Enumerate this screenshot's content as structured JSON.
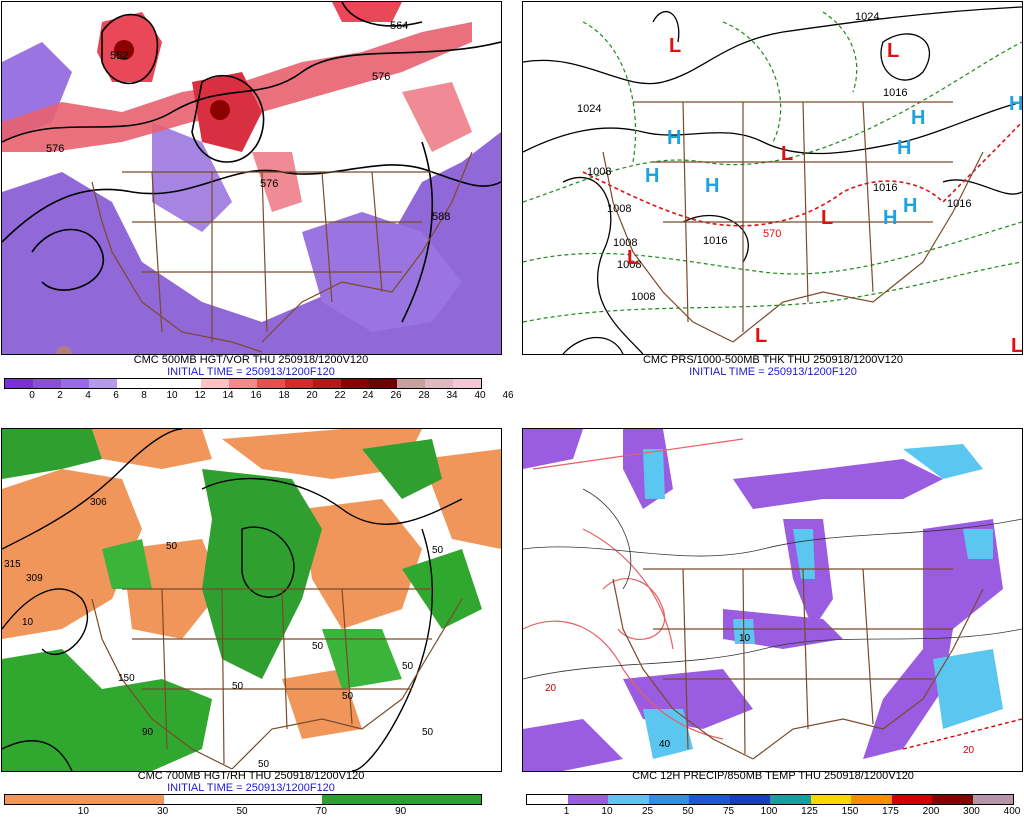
{
  "panels": [
    {
      "id": "p1",
      "caption_line1": "CMC 500MB HGT/VOR THU 250918/1200V120",
      "caption_line2": "INITIAL TIME = 250913/1200F120",
      "scale_colors": [
        "#7b2fd6",
        "#8a4de0",
        "#9a6be6",
        "#b49ae8",
        "#ffffff",
        "#ffffff",
        "#ffffff",
        "#ffc2c2",
        "#f28a8a",
        "#e85050",
        "#d42a2a",
        "#b81818",
        "#8b0000",
        "#6e0000",
        "#c9a0a0",
        "#e0b8c0",
        "#f5c6d6"
      ],
      "scale_labels": [
        "0",
        "2",
        "4",
        "6",
        "8",
        "10",
        "12",
        "14",
        "16",
        "18",
        "20",
        "22",
        "24",
        "26",
        "28",
        "34",
        "40",
        "46"
      ],
      "contour_labels": [
        "552",
        "564",
        "576",
        "576",
        "576",
        "588"
      ]
    },
    {
      "id": "p2",
      "caption_line1": "CMC PRS/1000-500MB THK THU 250918/1200V120",
      "caption_line2": "INITIAL TIME = 250913/1200F120",
      "pressure_labels": [
        "1024",
        "1024",
        "1016",
        "1008",
        "1008",
        "1016",
        "1016",
        "1016",
        "1008",
        "1008",
        "1008",
        "1016"
      ],
      "thickness_label": "570",
      "low_marker": "L",
      "high_marker": "H",
      "low_color": "#e01010",
      "high_color": "#1fa2e0"
    },
    {
      "id": "p3",
      "caption_line1": "CMC 700MB HGT/RH THU 250918/1200V120",
      "caption_line2": "INITIAL TIME = 250913/1200F120",
      "scale_colors": [
        "#f0965a",
        "#f0965a",
        "#ffffff",
        "#ffffff",
        "#2fa02f",
        "#2fa02f"
      ],
      "scale_labels": [
        "10",
        "30",
        "50",
        "70",
        "90"
      ],
      "contour_labels": [
        "315",
        "309",
        "306",
        "10",
        "150",
        "90",
        "50",
        "50",
        "50",
        "50",
        "50",
        "50",
        "50",
        "50"
      ]
    },
    {
      "id": "p4",
      "caption_line1": "CMC 12H PRECIP/850MB TEMP THU 250918/1200V120",
      "caption_line2": "INITIAL TIME = 250913/1200F120",
      "scale_colors": [
        "#ffffff",
        "#9a5ce0",
        "#5bc6f0",
        "#2a90e8",
        "#1e56d8",
        "#1a3cc0",
        "#15a0a0",
        "#ffd700",
        "#ff8c00",
        "#d40000",
        "#8b0000",
        "#b894a8"
      ],
      "scale_labels": [
        "1",
        "10",
        "25",
        "50",
        "75",
        "100",
        "125",
        "150",
        "175",
        "200",
        "300",
        "400"
      ],
      "contour_labels": [
        "20",
        "10",
        "40"
      ]
    }
  ]
}
